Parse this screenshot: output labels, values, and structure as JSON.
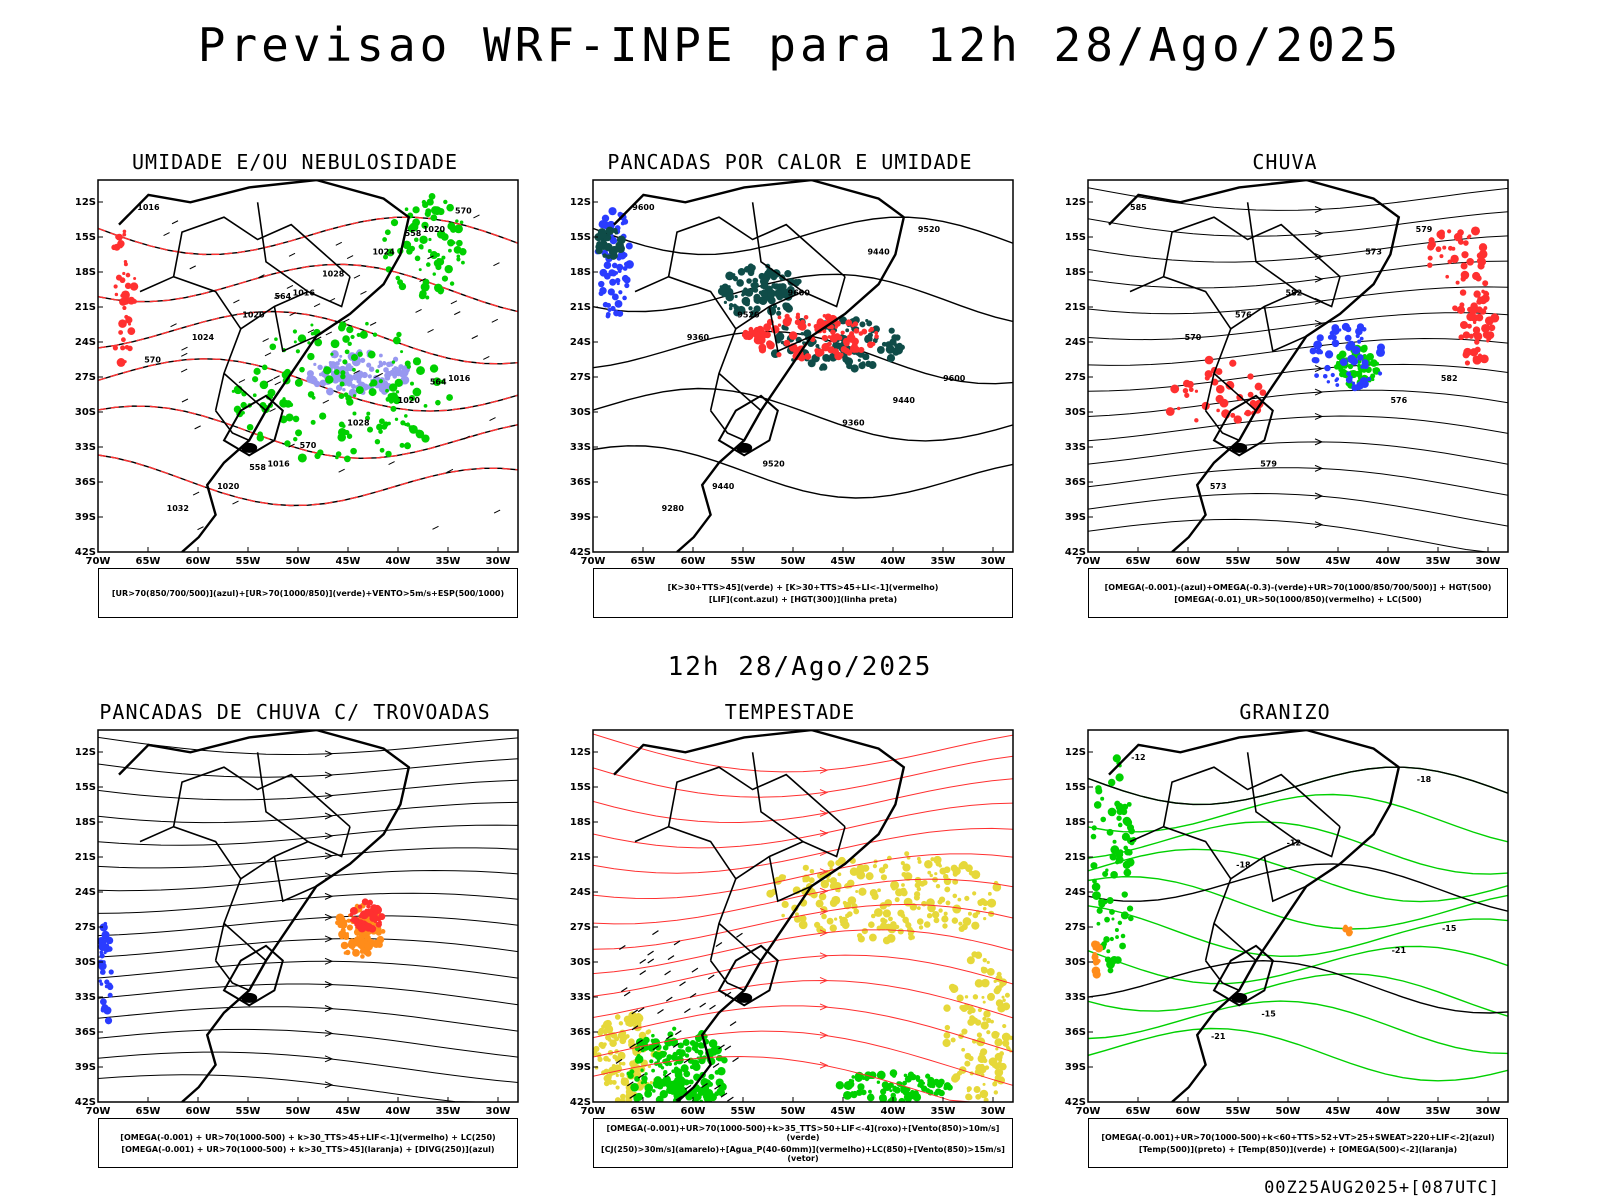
{
  "title": "Previsao WRF-INPE  para 12h 28/Ago/2025",
  "middle_title": "12h 28/Ago/2025",
  "footer": "00Z25AUG2025+[087UTC]",
  "axes": {
    "lat_labels": [
      "12S",
      "15S",
      "18S",
      "21S",
      "24S",
      "27S",
      "30S",
      "33S",
      "36S",
      "39S",
      "42S"
    ],
    "lon_labels": [
      "70W",
      "65W",
      "60W",
      "55W",
      "50W",
      "45W",
      "40W",
      "35W",
      "30W"
    ]
  },
  "colors": {
    "blue": "#2a3cff",
    "green": "#00d000",
    "red": "#ff3030",
    "orange": "#ff8c1a",
    "yellow": "#e6d83a",
    "darkgreen": "#0f4c48",
    "lavender": "#9898f0"
  },
  "panels": [
    {
      "title": "UMIDADE E/OU NEBULOSIDADE",
      "legend": [
        "[UR>70(850/700/500)](azul)+[UR>70(1000/850)](verde)+VENTO>5m/s+ESP(500/1000)"
      ],
      "contour_labels": [
        "1016",
        "1016",
        "1016",
        "1016",
        "1020",
        "1020",
        "1020",
        "1020",
        "1024",
        "1024",
        "1028",
        "1032",
        "1028",
        "570",
        "570",
        "570",
        "564",
        "564",
        "558",
        "558"
      ]
    },
    {
      "title": "PANCADAS POR CALOR E UMIDADE",
      "legend": [
        "[K>30+TTS>45](verde) + [K>30+TTS>45+LI<-1](vermelho)",
        "[LIF](cont.azul) + [HGT(300)](linha preta)"
      ],
      "contour_labels": [
        "9600",
        "9600",
        "9600",
        "9520",
        "9520",
        "9520",
        "9440",
        "9440",
        "9440",
        "9360",
        "9360",
        "9280"
      ]
    },
    {
      "title": "CHUVA",
      "legend": [
        "[OMEGA(-0.001)-(azul)+OMEGA(-0.3)-(verde)+UR>70(1000/850/700/500)] + HGT(500)",
        "[OMEGA(-0.01)_UR>50(1000/850)(vermelho) + LC(500)"
      ],
      "contour_labels": [
        "585",
        "582",
        "582",
        "579",
        "579",
        "576",
        "576",
        "573",
        "573",
        "570"
      ]
    },
    {
      "title": "PANCADAS DE CHUVA C/ TROVOADAS",
      "legend": [
        "[OMEGA(-0.001) + UR>70(1000-500) + k>30_TTS>45+LIF<-1](vermelho) + LC(250)",
        "[OMEGA(-0.001) + UR>70(1000-500) + k>30_TTS>45](laranja) + [DIVG(250)](azul)"
      ],
      "contour_labels": []
    },
    {
      "title": "TEMPESTADE",
      "legend": [
        "[OMEGA(-0.001)+UR>70(1000-500)+k>35_TTS>50+LIF<-4](roxo)+[Vento(850)>10m/s](verde)",
        "[CJ(250)>30m/s](amarelo)+[Agua_P(40-60mm)](vermelho)+LC(850)+[Vento(850)>15m/s](vetor)"
      ],
      "contour_labels": []
    },
    {
      "title": "GRANIZO",
      "legend": [
        "[OMEGA(-0.001)+UR>70(1000-500)+k<60+TTS>52+VT>25+SWEAT>220+LIF<-2](azul)",
        "[Temp(500)](preto) + [Temp(850)](verde) + [OMEGA(500)<-2](laranja)"
      ],
      "contour_labels": [
        "-12",
        "-12",
        "-15",
        "-15",
        "-18",
        "-18",
        "-21",
        "-21"
      ]
    }
  ]
}
